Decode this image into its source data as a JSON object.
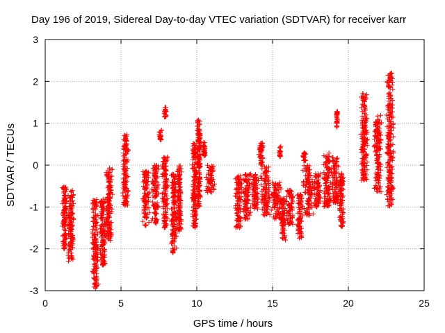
{
  "chart_data": {
    "type": "scatter",
    "title": "Day 196 of 2019, Sidereal Day-to-day VTEC variation (SDTVAR) for receiver karr",
    "xlabel": "GPS time / hours",
    "ylabel": "SDTVAR / TECUs",
    "xlim": [
      0,
      25
    ],
    "ylim": [
      -3,
      3
    ],
    "xticks": [
      0,
      5,
      10,
      15,
      20,
      25
    ],
    "yticks": [
      -3,
      -2,
      -1,
      0,
      1,
      2,
      3
    ],
    "xtick_labels": [
      "0",
      "5",
      "10",
      "15",
      "20",
      "25"
    ],
    "ytick_labels": [
      "-3",
      "-2",
      "-1",
      "0",
      "1",
      "2",
      "3"
    ],
    "grid": true,
    "marker": "+",
    "color": "#ff0000",
    "clusters": [
      {
        "x": [
          1.1,
          1.45
        ],
        "y": [
          -2.0,
          -0.5
        ]
      },
      {
        "x": [
          1.5,
          1.9
        ],
        "y": [
          -2.3,
          -0.6
        ]
      },
      {
        "x": [
          3.1,
          3.5
        ],
        "y": [
          -2.95,
          -0.8
        ]
      },
      {
        "x": [
          3.6,
          4.0
        ],
        "y": [
          -2.4,
          -0.8
        ]
      },
      {
        "x": [
          4.0,
          4.45
        ],
        "y": [
          -1.8,
          -0.05
        ]
      },
      {
        "x": [
          5.1,
          5.5
        ],
        "y": [
          -1.0,
          0.75
        ]
      },
      {
        "x": [
          6.4,
          6.9
        ],
        "y": [
          -1.45,
          -0.1
        ]
      },
      {
        "x": [
          7.0,
          7.5
        ],
        "y": [
          -1.4,
          0.0
        ]
      },
      {
        "x": [
          7.5,
          7.7
        ],
        "y": [
          0.6,
          0.85
        ]
      },
      {
        "x": [
          7.7,
          8.1
        ],
        "y": [
          -1.5,
          0.2
        ]
      },
      {
        "x": [
          7.85,
          8.0
        ],
        "y": [
          1.15,
          1.38
        ]
      },
      {
        "x": [
          8.3,
          8.7
        ],
        "y": [
          -2.1,
          -0.2
        ]
      },
      {
        "x": [
          8.7,
          9.0
        ],
        "y": [
          -1.6,
          0.0
        ]
      },
      {
        "x": [
          9.7,
          10.0
        ],
        "y": [
          -1.5,
          0.55
        ]
      },
      {
        "x": [
          10.0,
          10.3
        ],
        "y": [
          -1.0,
          1.1
        ]
      },
      {
        "x": [
          10.4,
          10.6
        ],
        "y": [
          0.2,
          0.55
        ]
      },
      {
        "x": [
          10.6,
          11.2
        ],
        "y": [
          -0.65,
          0.0
        ]
      },
      {
        "x": [
          12.5,
          13.0
        ],
        "y": [
          -1.5,
          -0.25
        ]
      },
      {
        "x": [
          13.0,
          13.6
        ],
        "y": [
          -1.3,
          -0.2
        ]
      },
      {
        "x": [
          13.6,
          14.1
        ],
        "y": [
          -1.05,
          -0.2
        ]
      },
      {
        "x": [
          14.1,
          14.4
        ],
        "y": [
          0.0,
          0.55
        ]
      },
      {
        "x": [
          14.2,
          14.9
        ],
        "y": [
          -1.2,
          0.0
        ]
      },
      {
        "x": [
          14.9,
          15.6
        ],
        "y": [
          -1.3,
          -0.4
        ]
      },
      {
        "x": [
          15.5,
          15.9
        ],
        "y": [
          -1.8,
          -0.8
        ]
      },
      {
        "x": [
          15.45,
          15.55
        ],
        "y": [
          0.2,
          0.45
        ]
      },
      {
        "x": [
          15.9,
          16.4
        ],
        "y": [
          -1.45,
          -0.6
        ]
      },
      {
        "x": [
          16.6,
          17.0
        ],
        "y": [
          -1.75,
          -0.7
        ]
      },
      {
        "x": [
          17.0,
          17.7
        ],
        "y": [
          -1.2,
          0.0
        ]
      },
      {
        "x": [
          17.0,
          17.2
        ],
        "y": [
          0.1,
          0.3
        ]
      },
      {
        "x": [
          17.7,
          18.2
        ],
        "y": [
          -1.0,
          -0.2
        ]
      },
      {
        "x": [
          18.3,
          18.9
        ],
        "y": [
          -1.0,
          0.3
        ]
      },
      {
        "x": [
          18.9,
          19.4
        ],
        "y": [
          -0.9,
          0.2
        ]
      },
      {
        "x": [
          19.2,
          19.3
        ],
        "y": [
          0.9,
          1.3
        ]
      },
      {
        "x": [
          19.4,
          19.7
        ],
        "y": [
          -1.5,
          -0.2
        ]
      },
      {
        "x": [
          20.8,
          21.3
        ],
        "y": [
          -0.4,
          1.75
        ]
      },
      {
        "x": [
          21.7,
          22.2
        ],
        "y": [
          -0.65,
          1.2
        ]
      },
      {
        "x": [
          22.5,
          23.0
        ],
        "y": [
          -1.0,
          2.2
        ]
      }
    ]
  }
}
